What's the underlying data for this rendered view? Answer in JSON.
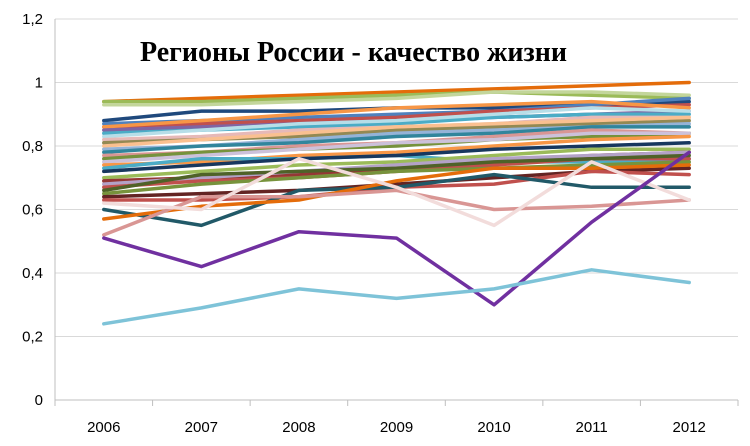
{
  "chart_data": {
    "type": "line",
    "title": "Регионы России - качество жизни",
    "xlabel": "",
    "ylabel": "",
    "x": [
      "2006",
      "2007",
      "2008",
      "2009",
      "2010",
      "2011",
      "2012"
    ],
    "y_ticks": [
      "0",
      "0,2",
      "0,4",
      "0,6",
      "0,8",
      "1",
      "1,2"
    ],
    "ylim": [
      0,
      1.2
    ],
    "grid": "horizontal",
    "legend": "none",
    "series": [
      {
        "color": "#e46c0a",
        "values": [
          0.94,
          0.95,
          0.96,
          0.97,
          0.98,
          0.99,
          1.0
        ]
      },
      {
        "color": "#9bbb59",
        "values": [
          0.94,
          0.94,
          0.95,
          0.96,
          0.97,
          0.96,
          0.95
        ]
      },
      {
        "color": "#c3d69b",
        "values": [
          0.93,
          0.93,
          0.94,
          0.95,
          0.97,
          0.97,
          0.96
        ]
      },
      {
        "color": "#1f497d",
        "values": [
          0.88,
          0.91,
          0.91,
          0.92,
          0.92,
          0.93,
          0.94
        ]
      },
      {
        "color": "#4f81bd",
        "values": [
          0.87,
          0.88,
          0.89,
          0.9,
          0.91,
          0.93,
          0.95
        ]
      },
      {
        "color": "#c0504d",
        "values": [
          0.86,
          0.87,
          0.88,
          0.89,
          0.91,
          0.92,
          0.93
        ]
      },
      {
        "color": "#f79646",
        "values": [
          0.86,
          0.88,
          0.9,
          0.92,
          0.93,
          0.94,
          0.92
        ]
      },
      {
        "color": "#8064a2",
        "values": [
          0.85,
          0.86,
          0.87,
          0.88,
          0.89,
          0.9,
          0.91
        ]
      },
      {
        "color": "#4bacc6",
        "values": [
          0.84,
          0.85,
          0.86,
          0.87,
          0.89,
          0.9,
          0.9
        ]
      },
      {
        "color": "#b7dee8",
        "values": [
          0.83,
          0.85,
          0.87,
          0.88,
          0.9,
          0.92,
          0.91
        ]
      },
      {
        "color": "#e6b9b8",
        "values": [
          0.82,
          0.83,
          0.85,
          0.86,
          0.87,
          0.89,
          0.89
        ]
      },
      {
        "color": "#938953",
        "values": [
          0.81,
          0.82,
          0.83,
          0.85,
          0.86,
          0.87,
          0.88
        ]
      },
      {
        "color": "#fac090",
        "values": [
          0.8,
          0.82,
          0.84,
          0.86,
          0.87,
          0.88,
          0.89
        ]
      },
      {
        "color": "#95b3d7",
        "values": [
          0.79,
          0.8,
          0.82,
          0.84,
          0.85,
          0.86,
          0.87
        ]
      },
      {
        "color": "#31859c",
        "values": [
          0.78,
          0.8,
          0.81,
          0.83,
          0.84,
          0.86,
          0.86
        ]
      },
      {
        "color": "#d99694",
        "values": [
          0.77,
          0.78,
          0.8,
          0.81,
          0.83,
          0.85,
          0.84
        ]
      },
      {
        "color": "#76923c",
        "values": [
          0.76,
          0.78,
          0.79,
          0.8,
          0.82,
          0.83,
          0.84
        ]
      },
      {
        "color": "#ccc1da",
        "values": [
          0.75,
          0.77,
          0.79,
          0.81,
          0.82,
          0.84,
          0.84
        ]
      },
      {
        "color": "#f79646",
        "values": [
          0.74,
          0.75,
          0.77,
          0.78,
          0.8,
          0.82,
          0.83
        ]
      },
      {
        "color": "#4bacc6",
        "values": [
          0.73,
          0.76,
          0.76,
          0.77,
          0.75,
          0.75,
          0.76
        ]
      },
      {
        "color": "#17375e",
        "values": [
          0.72,
          0.74,
          0.76,
          0.77,
          0.79,
          0.8,
          0.81
        ]
      },
      {
        "color": "#9bbb59",
        "values": [
          0.7,
          0.72,
          0.74,
          0.75,
          0.77,
          0.79,
          0.79
        ]
      },
      {
        "color": "#953735",
        "values": [
          0.69,
          0.7,
          0.71,
          0.73,
          0.75,
          0.77,
          0.78
        ]
      },
      {
        "color": "#b3a2c7",
        "values": [
          0.68,
          0.7,
          0.72,
          0.74,
          0.76,
          0.77,
          0.78
        ]
      },
      {
        "color": "#c0504d",
        "values": [
          0.67,
          0.69,
          0.7,
          0.72,
          0.74,
          0.76,
          0.76
        ]
      },
      {
        "color": "#4f6228",
        "values": [
          0.66,
          0.71,
          0.72,
          0.73,
          0.75,
          0.76,
          0.77
        ]
      },
      {
        "color": "#77933c",
        "values": [
          0.65,
          0.68,
          0.7,
          0.72,
          0.73,
          0.74,
          0.75
        ]
      },
      {
        "color": "#632423",
        "values": [
          0.64,
          0.65,
          0.66,
          0.68,
          0.7,
          0.72,
          0.73
        ]
      },
      {
        "color": "#c0504d",
        "values": [
          0.63,
          0.63,
          0.64,
          0.67,
          0.68,
          0.72,
          0.71
        ]
      },
      {
        "color": "#215968",
        "values": [
          0.6,
          0.55,
          0.66,
          0.67,
          0.71,
          0.67,
          0.67
        ]
      },
      {
        "color": "#e46c0a",
        "values": [
          0.57,
          0.61,
          0.63,
          0.69,
          0.73,
          0.73,
          0.74
        ]
      },
      {
        "color": "#d99694",
        "values": [
          0.52,
          0.64,
          0.64,
          0.66,
          0.6,
          0.61,
          0.63
        ]
      },
      {
        "color": "#f2dcdb",
        "values": [
          0.62,
          0.6,
          0.76,
          0.67,
          0.55,
          0.75,
          0.63
        ]
      },
      {
        "color": "#7030a0",
        "values": [
          0.51,
          0.42,
          0.53,
          0.51,
          0.3,
          0.56,
          0.78
        ]
      },
      {
        "color": "#7ec3d8",
        "values": [
          0.24,
          0.29,
          0.35,
          0.32,
          0.35,
          0.41,
          0.37
        ]
      }
    ]
  }
}
